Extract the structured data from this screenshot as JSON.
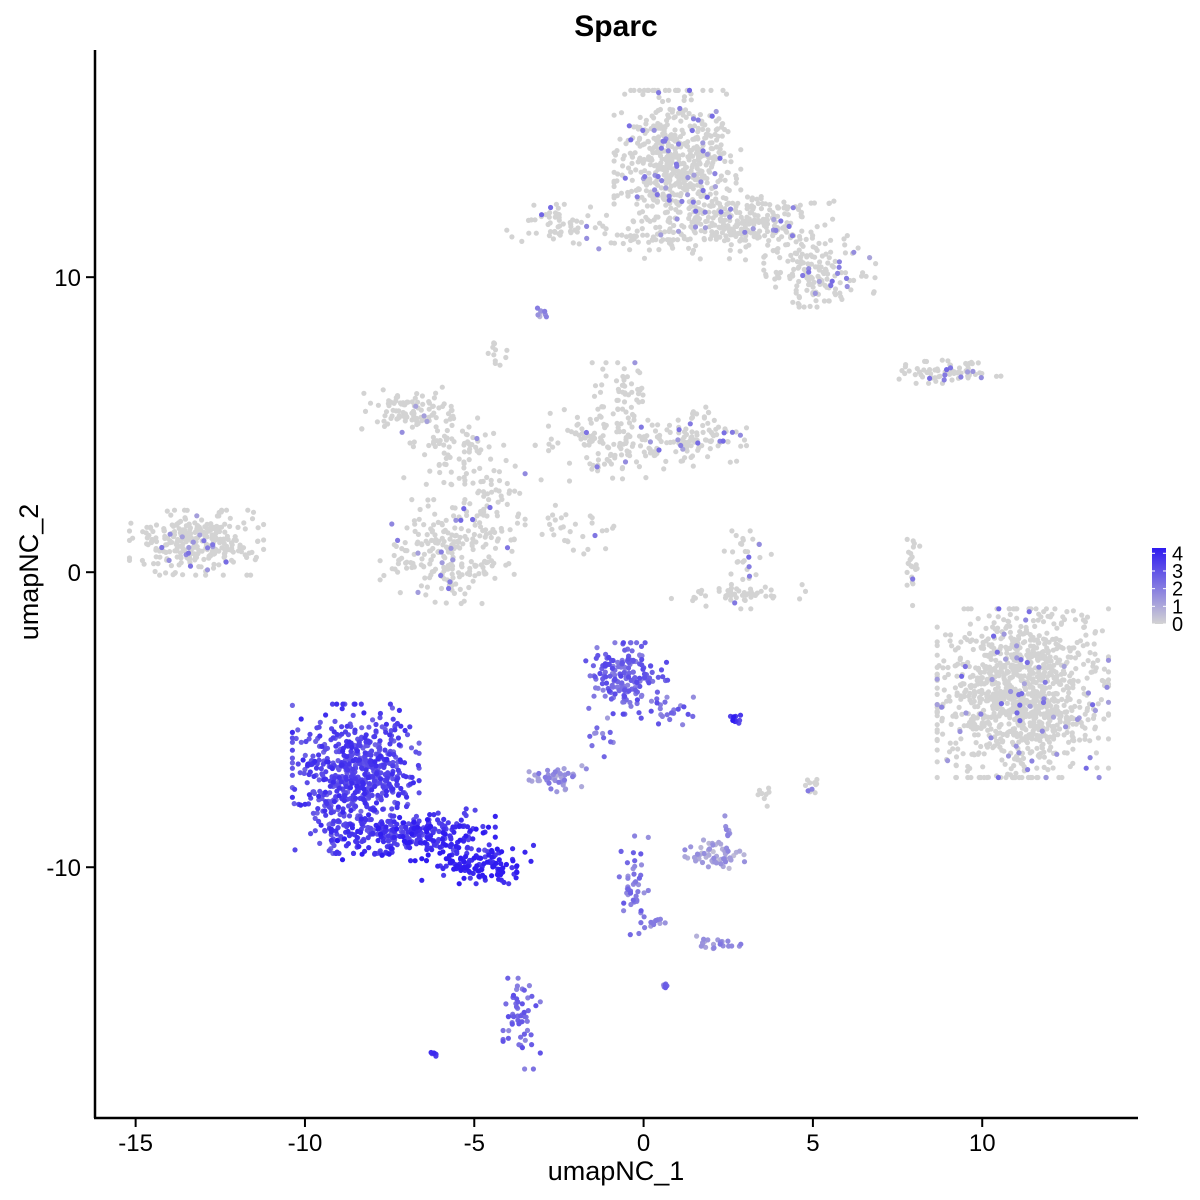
{
  "chart_data": {
    "type": "scatter",
    "title": "Sparc",
    "xlabel": "umapNC_1",
    "ylabel": "umapNC_2",
    "xlim": [
      -16.2,
      14.6
    ],
    "ylim": [
      -18.5,
      17.7
    ],
    "x_ticks": [
      -15,
      -10,
      -5,
      0,
      5,
      10
    ],
    "x_tick_labels": [
      "-15",
      "-10",
      "-5",
      "0",
      "5",
      "10"
    ],
    "y_ticks": [
      -10,
      0,
      10
    ],
    "y_tick_labels": [
      "-10",
      "0",
      "10"
    ],
    "grid": false,
    "legend": {
      "placement": "right",
      "type": "colorbar",
      "min": 0,
      "max": 4.3,
      "ticks": [
        0,
        1,
        2,
        3,
        4
      ],
      "labels": [
        "0",
        "1",
        "2",
        "3",
        "4"
      ],
      "color_low": "#d3d3d3",
      "color_high": "#2f1bf0"
    },
    "point_color_low": "#d3d3d3",
    "point_color_high": "#2f1bf0",
    "clusters": [
      {
        "cx": 1.0,
        "cy": 13.8,
        "sx": 0.85,
        "sy": 1.15,
        "n": 620,
        "expr": 0.05
      },
      {
        "cx": 3.2,
        "cy": 11.8,
        "sx": 1.1,
        "sy": 0.55,
        "n": 260,
        "expr": 0.05
      },
      {
        "cx": 5.2,
        "cy": 10.2,
        "sx": 0.75,
        "sy": 0.55,
        "n": 150,
        "expr": 0.08
      },
      {
        "cx": -2.5,
        "cy": 11.7,
        "sx": 0.7,
        "sy": 0.35,
        "n": 60,
        "expr": 0.05
      },
      {
        "cx": -0.3,
        "cy": 11.3,
        "sx": 0.7,
        "sy": 0.3,
        "n": 30,
        "expr": 0.03
      },
      {
        "cx": -4.3,
        "cy": 7.4,
        "sx": 0.2,
        "sy": 0.25,
        "n": 12,
        "expr": 0.0
      },
      {
        "cx": -3.0,
        "cy": 8.8,
        "sx": 0.12,
        "sy": 0.1,
        "n": 8,
        "expr": 0.3
      },
      {
        "cx": -7.0,
        "cy": 5.5,
        "sx": 0.6,
        "sy": 0.35,
        "n": 90,
        "expr": 0.03
      },
      {
        "cx": -5.6,
        "cy": 4.3,
        "sx": 0.7,
        "sy": 0.6,
        "n": 80,
        "expr": 0.03
      },
      {
        "cx": -4.6,
        "cy": 2.4,
        "sx": 0.5,
        "sy": 0.9,
        "n": 70,
        "expr": 0.04
      },
      {
        "cx": -1.0,
        "cy": 4.3,
        "sx": 1.0,
        "sy": 0.55,
        "n": 130,
        "expr": 0.05
      },
      {
        "cx": -0.6,
        "cy": 6.0,
        "sx": 0.45,
        "sy": 0.5,
        "n": 55,
        "expr": 0.03
      },
      {
        "cx": 1.5,
        "cy": 4.6,
        "sx": 0.7,
        "sy": 0.5,
        "n": 110,
        "expr": 0.1
      },
      {
        "cx": -5.8,
        "cy": 0.7,
        "sx": 0.9,
        "sy": 0.8,
        "n": 230,
        "expr": 0.06
      },
      {
        "cx": -2.2,
        "cy": 1.5,
        "sx": 0.6,
        "sy": 0.4,
        "n": 30,
        "expr": 0.05
      },
      {
        "cx": 3.0,
        "cy": 0.3,
        "sx": 0.35,
        "sy": 0.5,
        "n": 35,
        "expr": 0.05
      },
      {
        "cx": 2.8,
        "cy": -0.8,
        "sx": 0.9,
        "sy": 0.2,
        "n": 45,
        "expr": 0.1
      },
      {
        "cx": -13.2,
        "cy": 1.0,
        "sx": 0.9,
        "sy": 0.5,
        "n": 290,
        "expr": 0.05
      },
      {
        "cx": 8.9,
        "cy": 6.8,
        "sx": 0.75,
        "sy": 0.18,
        "n": 75,
        "expr": 0.05
      },
      {
        "cx": 7.9,
        "cy": 0.3,
        "sx": 0.12,
        "sy": 0.65,
        "n": 25,
        "expr": 0.05
      },
      {
        "cx": 11.2,
        "cy": -4.1,
        "sx": 1.15,
        "sy": 1.3,
        "n": 1150,
        "expr": 0.04
      },
      {
        "cx": -0.5,
        "cy": -3.6,
        "sx": 0.55,
        "sy": 0.55,
        "n": 170,
        "expr": 0.6
      },
      {
        "cx": 0.7,
        "cy": -4.7,
        "sx": 0.35,
        "sy": 0.3,
        "n": 22,
        "expr": 0.55
      },
      {
        "cx": -1.2,
        "cy": -5.6,
        "sx": 0.25,
        "sy": 0.35,
        "n": 12,
        "expr": 0.45
      },
      {
        "cx": -2.5,
        "cy": -7.0,
        "sx": 0.4,
        "sy": 0.2,
        "n": 45,
        "expr": 0.35
      },
      {
        "cx": -8.5,
        "cy": -7.0,
        "sx": 0.85,
        "sy": 1.15,
        "n": 650,
        "expr": 0.75
      },
      {
        "cx": -6.8,
        "cy": -8.9,
        "sx": 1.1,
        "sy": 0.4,
        "n": 260,
        "expr": 0.85
      },
      {
        "cx": -4.9,
        "cy": -9.9,
        "sx": 0.75,
        "sy": 0.3,
        "n": 120,
        "expr": 0.95
      },
      {
        "cx": -3.6,
        "cy": -15.3,
        "sx": 0.25,
        "sy": 0.7,
        "n": 55,
        "expr": 0.55
      },
      {
        "cx": -6.2,
        "cy": -16.3,
        "sx": 0.06,
        "sy": 0.05,
        "n": 8,
        "expr": 0.8
      },
      {
        "cx": 2.1,
        "cy": -9.6,
        "sx": 0.4,
        "sy": 0.25,
        "n": 60,
        "expr": 0.25
      },
      {
        "cx": 2.5,
        "cy": -8.7,
        "sx": 0.08,
        "sy": 0.2,
        "n": 8,
        "expr": 0.3
      },
      {
        "cx": -0.3,
        "cy": -10.7,
        "sx": 0.2,
        "sy": 0.8,
        "n": 45,
        "expr": 0.5
      },
      {
        "cx": 2.1,
        "cy": -12.6,
        "sx": 0.35,
        "sy": 0.12,
        "n": 22,
        "expr": 0.35
      },
      {
        "cx": 0.5,
        "cy": -11.8,
        "sx": 0.3,
        "sy": 0.1,
        "n": 10,
        "expr": 0.4
      },
      {
        "cx": 2.7,
        "cy": -5.0,
        "sx": 0.15,
        "sy": 0.07,
        "n": 10,
        "expr": 0.85
      },
      {
        "cx": 3.5,
        "cy": -7.6,
        "sx": 0.1,
        "sy": 0.15,
        "n": 8,
        "expr": 0.05
      },
      {
        "cx": 5.0,
        "cy": -7.3,
        "sx": 0.1,
        "sy": 0.15,
        "n": 12,
        "expr": 0.05
      },
      {
        "cx": 0.6,
        "cy": -14.0,
        "sx": 0.06,
        "sy": 0.08,
        "n": 6,
        "expr": 0.5
      }
    ]
  }
}
